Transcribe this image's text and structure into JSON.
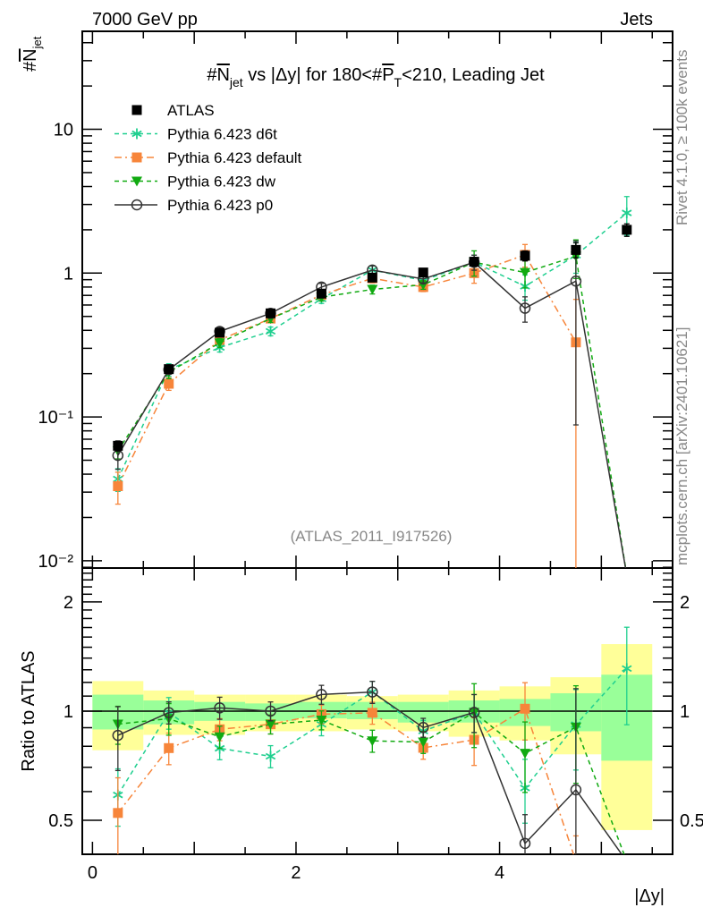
{
  "header": {
    "left": "7000 GeV pp",
    "right": "Jets"
  },
  "side_labels": {
    "rivet": "Rivet 4.1.0, ≥ 100k events",
    "mcplots": "mcplots.cern.ch [arXiv:2401.10621]"
  },
  "analysis_id": "(ATLAS_2011_I917526)",
  "title_parts": {
    "a": "#",
    "b": "N",
    "c": "jet",
    "d": " vs |Δy| for 180<#",
    "e": "P",
    "f": "T",
    "g": "<210, Leading Jet"
  },
  "ylabel_parts": {
    "a": "#",
    "b": "N",
    "c": "jet"
  },
  "ratio_ylabel": "Ratio to ATLAS",
  "chart_data": {
    "type": "line",
    "title": "#N_jet vs |Δy| for 180<#P_T<210, Leading Jet",
    "xlabel": "|Δy|",
    "ylabel": "#N_jet",
    "xlim": [
      -0.1,
      5.7
    ],
    "ylim": [
      0.0089,
      48
    ],
    "yscale": "log",
    "x_ticks": [
      "0",
      "2",
      "4"
    ],
    "y_ticks": [
      "10",
      "1",
      "10⁻¹",
      "10⁻²"
    ],
    "legend_position": "top-left",
    "bin_edges": [
      0,
      0.5,
      1,
      1.5,
      2,
      2.5,
      3,
      3.5,
      4,
      4.5,
      5,
      5.5
    ],
    "x": [
      0.25,
      0.75,
      1.25,
      1.75,
      2.25,
      2.75,
      3.25,
      3.75,
      4.25,
      4.75,
      5.25
    ],
    "series": [
      {
        "name": "ATLAS",
        "color": "#000000",
        "marker": "square-filled",
        "style": "none",
        "values": [
          0.063,
          0.215,
          0.385,
          0.525,
          0.72,
          0.93,
          1.01,
          1.2,
          1.32,
          1.45,
          2.0
        ],
        "rel_err": [
          0.08,
          0.06,
          0.06,
          0.05,
          0.05,
          0.05,
          0.05,
          0.07,
          0.08,
          0.12,
          0.1
        ]
      },
      {
        "name": "Pythia 6.423 d6t",
        "color": "#1fcf8f",
        "marker": "asterisk",
        "style": "dashed",
        "values": [
          0.037,
          0.213,
          0.304,
          0.394,
          0.662,
          1.05,
          0.89,
          1.19,
          0.81,
          1.33,
          2.62
        ],
        "rel_err": [
          0.18,
          0.1,
          0.07,
          0.07,
          0.07,
          0.07,
          0.07,
          0.12,
          0.2,
          0.25,
          0.3
        ]
      },
      {
        "name": "Pythia 6.423 default",
        "color": "#f7853a",
        "marker": "square-filled",
        "style": "dashdot",
        "values": [
          0.033,
          0.17,
          0.343,
          0.483,
          0.706,
          0.92,
          0.8,
          1.0,
          1.34,
          0.33,
          null
        ],
        "rel_err": [
          0.25,
          0.1,
          0.07,
          0.06,
          0.06,
          0.07,
          0.07,
          0.15,
          0.18,
          0.99,
          0
        ]
      },
      {
        "name": "Pythia 6.423 dw",
        "color": "#11aa11",
        "marker": "triangle-down",
        "style": "dashed",
        "values": [
          0.058,
          0.205,
          0.327,
          0.483,
          0.68,
          0.77,
          0.83,
          1.19,
          1.01,
          1.31,
          0.001
        ],
        "rel_err": [
          0.12,
          0.1,
          0.07,
          0.06,
          0.06,
          0.07,
          0.07,
          0.2,
          0.22,
          0.3,
          0
        ]
      },
      {
        "name": "Pythia 6.423 p0",
        "color": "#333333",
        "marker": "circle-open",
        "style": "solid",
        "values": [
          0.054,
          0.213,
          0.393,
          0.525,
          0.8,
          1.05,
          0.91,
          1.19,
          0.57,
          0.88,
          0.001
        ],
        "rel_err": [
          0.2,
          0.07,
          0.07,
          0.06,
          0.06,
          0.07,
          0.06,
          0.12,
          0.2,
          0.9,
          0
        ]
      }
    ],
    "ratio": {
      "ylabel": "Ratio to ATLAS",
      "ylim": [
        0.403,
        2.48
      ],
      "yscale": "log",
      "y_ticks": [
        "2",
        "1",
        "0.5"
      ],
      "band_outer": {
        "color": "#ffff99",
        "lo": [
          0.78,
          0.86,
          0.86,
          0.88,
          0.88,
          0.89,
          0.88,
          0.85,
          0.83,
          0.76,
          0.47
        ],
        "hi": [
          1.21,
          1.14,
          1.11,
          1.11,
          1.11,
          1.1,
          1.11,
          1.14,
          1.17,
          1.24,
          1.53
        ]
      },
      "band_inner": {
        "color": "#99ff99",
        "lo": [
          0.89,
          0.92,
          0.94,
          0.94,
          0.955,
          0.95,
          0.93,
          0.93,
          0.91,
          0.88,
          0.73
        ],
        "hi": [
          1.11,
          1.07,
          1.06,
          1.05,
          1.06,
          1.06,
          1.06,
          1.07,
          1.08,
          1.12,
          1.26
        ]
      }
    }
  }
}
